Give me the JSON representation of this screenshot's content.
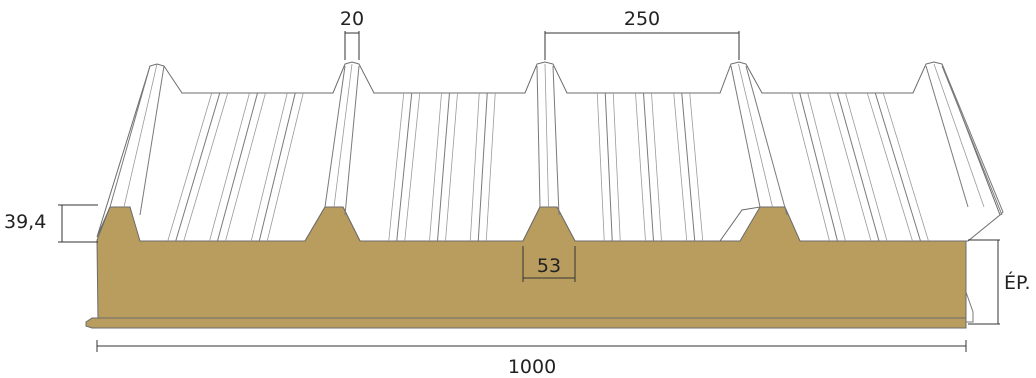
{
  "colors": {
    "sheet": "#ffffff",
    "sheet_shade": "#f2f2f2",
    "foam_core": "#b89d5f",
    "foam_edge": "#9e8449",
    "outline": "#6b6b6b",
    "dimension": "#333333"
  },
  "dimensions": {
    "rib_top_width": "20",
    "rib_spacing": "250",
    "rib_height": "39,4",
    "rib_base_width": "53",
    "panel_width": "1000",
    "thickness": "ÉP."
  }
}
